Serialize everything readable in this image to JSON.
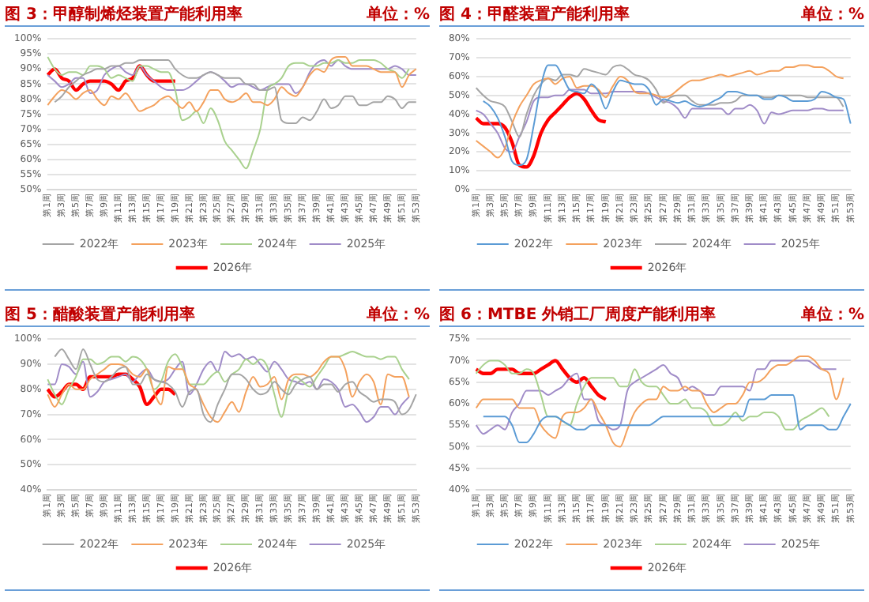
{
  "chart_data": [
    {
      "type": "line",
      "title": "图 3：甲醇制烯烃装置产能利用率",
      "subtitle": "单位：%",
      "categories": [
        "第1周",
        null,
        "第3周",
        null,
        "第5周",
        null,
        "第7周",
        null,
        "第9周",
        null,
        "第11周",
        null,
        "第13周",
        null,
        "第15周",
        null,
        "第17周",
        null,
        "第19周",
        null,
        "第21周",
        null,
        "第23周",
        null,
        "第25周",
        null,
        "第27周",
        null,
        "第29周",
        null,
        "第31周",
        null,
        "第33周",
        null,
        "第35周",
        null,
        "第37周",
        null,
        "第39周",
        null,
        "第41周",
        null,
        "第43周",
        null,
        "第45周",
        null,
        "第47周",
        null,
        "第49周",
        null,
        "第51周",
        null,
        "第53周"
      ],
      "ylim": [
        50,
        100
      ],
      "yticks": [
        {
          "value": 50,
          "label": "50%"
        },
        {
          "value": 55,
          "label": "55%"
        },
        {
          "value": 60,
          "label": "60%"
        },
        {
          "value": 65,
          "label": "65%"
        },
        {
          "value": 70,
          "label": "70%"
        },
        {
          "value": 75,
          "label": "75%"
        },
        {
          "value": 80,
          "label": "80%"
        },
        {
          "value": 85,
          "label": "85%"
        },
        {
          "value": 90,
          "label": "90%"
        },
        {
          "value": 95,
          "label": "95%"
        },
        {
          "value": 100,
          "label": "100%"
        }
      ],
      "grid": "y",
      "legend": "bottom",
      "series": [
        {
          "name": "2022年",
          "color": "#a5a5a5",
          "values": [
            null,
            79,
            81,
            84,
            86,
            88,
            89,
            90,
            90,
            91,
            91,
            92,
            92,
            93,
            93,
            93,
            93,
            93,
            90,
            88,
            87,
            87,
            88,
            89,
            88,
            87,
            87,
            87,
            85,
            85,
            83,
            83,
            84,
            73,
            72,
            72,
            74,
            73,
            76,
            80,
            77,
            78,
            81,
            81,
            78,
            78,
            79,
            79,
            81,
            80,
            77,
            79,
            79
          ]
        },
        {
          "name": "2023年",
          "color": "#f4a15d",
          "values": [
            78,
            81,
            83,
            82,
            80,
            82,
            83,
            80,
            78,
            81,
            80,
            82,
            79,
            76,
            77,
            78,
            80,
            81,
            79,
            77,
            79,
            76,
            79,
            83,
            83,
            80,
            79,
            80,
            82,
            79,
            79,
            78,
            80,
            84,
            82,
            81,
            84,
            88,
            90,
            89,
            93,
            94,
            94,
            91,
            91,
            91,
            90,
            89,
            89,
            89,
            84,
            88,
            90
          ]
        },
        {
          "name": "2024年",
          "color": "#a9d18e",
          "values": [
            94,
            90,
            88,
            89,
            89,
            88,
            91,
            91,
            90,
            87,
            88,
            87,
            86,
            91,
            91,
            90,
            89,
            89,
            83,
            73,
            74,
            76,
            72,
            77,
            73,
            66,
            63,
            60,
            57,
            63,
            70,
            83,
            85,
            87,
            91,
            92,
            92,
            91,
            91,
            92,
            92,
            93,
            92,
            92,
            93,
            93,
            93,
            92,
            90,
            89,
            87,
            90,
            null
          ]
        },
        {
          "name": "2025年",
          "color": "#a08cc8",
          "values": [
            88,
            86,
            84,
            85,
            87,
            87,
            82,
            83,
            88,
            90,
            91,
            89,
            88,
            91,
            88,
            86,
            84,
            83,
            83,
            83,
            84,
            86,
            88,
            89,
            88,
            86,
            84,
            85,
            85,
            84,
            83,
            84,
            85,
            85,
            85,
            82,
            84,
            89,
            92,
            93,
            91,
            93,
            91,
            90,
            90,
            90,
            90,
            90,
            90,
            91,
            90,
            88,
            88
          ]
        },
        {
          "name": "2026年",
          "color": "#ff0000",
          "values": [
            88,
            90,
            87,
            86,
            83,
            85,
            86,
            86,
            86,
            85,
            83,
            86,
            87,
            91,
            88,
            86,
            86,
            86,
            86,
            null,
            null,
            null,
            null,
            null,
            null,
            null,
            null,
            null,
            null,
            null,
            null,
            null,
            null,
            null,
            null,
            null,
            null,
            null,
            null,
            null,
            null,
            null,
            null,
            null,
            null,
            null,
            null,
            null,
            null,
            null,
            null,
            null,
            null
          ]
        }
      ]
    },
    {
      "type": "line",
      "title": "图 4：甲醛装置产能利用率",
      "subtitle": "单位：%",
      "categories": [
        "第1周",
        null,
        "第3周",
        null,
        "第5周",
        null,
        "第7周",
        null,
        "第9周",
        null,
        "第11周",
        null,
        "第13周",
        null,
        "第15周",
        null,
        "第17周",
        null,
        "第19周",
        null,
        "第21周",
        null,
        "第23周",
        null,
        "第25周",
        null,
        "第27周",
        null,
        "第29周",
        null,
        "第31周",
        null,
        "第33周",
        null,
        "第35周",
        null,
        "第37周",
        null,
        "第39周",
        null,
        "第41周",
        null,
        "第43周",
        null,
        "第45周",
        null,
        "第47周",
        null,
        "第49周",
        null,
        "第51周",
        null,
        "第53周"
      ],
      "ylim": [
        0,
        80
      ],
      "yticks": [
        {
          "value": 0,
          "label": "0%"
        },
        {
          "value": 10,
          "label": "10%"
        },
        {
          "value": 20,
          "label": "20%"
        },
        {
          "value": 30,
          "label": "30%"
        },
        {
          "value": 40,
          "label": "40%"
        },
        {
          "value": 50,
          "label": "50%"
        },
        {
          "value": 60,
          "label": "60%"
        },
        {
          "value": 70,
          "label": "70%"
        },
        {
          "value": 80,
          "label": "80%"
        }
      ],
      "grid": "y",
      "legend": "bottom",
      "series": [
        {
          "name": "2022年",
          "color": "#5b9bd5",
          "values": [
            null,
            47,
            44,
            38,
            28,
            15,
            13,
            16,
            34,
            55,
            66,
            66,
            60,
            53,
            52,
            51,
            56,
            52,
            43,
            52,
            58,
            57,
            56,
            56,
            53,
            45,
            48,
            47,
            46,
            47,
            45,
            44,
            45,
            47,
            49,
            52,
            52,
            51,
            50,
            50,
            48,
            48,
            50,
            49,
            47,
            47,
            47,
            48,
            52,
            51,
            49,
            48,
            35
          ]
        },
        {
          "name": "2023年",
          "color": "#f4a15d",
          "values": [
            26,
            23,
            20,
            17,
            22,
            35,
            44,
            50,
            56,
            58,
            59,
            56,
            59,
            60,
            54,
            55,
            55,
            53,
            49,
            55,
            60,
            58,
            52,
            51,
            51,
            50,
            49,
            50,
            53,
            56,
            58,
            58,
            59,
            60,
            61,
            60,
            61,
            62,
            63,
            61,
            62,
            63,
            63,
            65,
            65,
            66,
            66,
            65,
            65,
            63,
            60,
            59,
            null
          ]
        },
        {
          "name": "2024年",
          "color": "#a5a5a5",
          "values": [
            54,
            50,
            47,
            46,
            44,
            36,
            28,
            40,
            50,
            56,
            59,
            58,
            61,
            61,
            60,
            64,
            63,
            62,
            61,
            65,
            66,
            64,
            61,
            60,
            58,
            53,
            46,
            49,
            50,
            50,
            47,
            45,
            45,
            45,
            46,
            46,
            47,
            50,
            50,
            50,
            49,
            49,
            50,
            50,
            50,
            50,
            49,
            49,
            49,
            49,
            49,
            44,
            null
          ]
        },
        {
          "name": "2025年",
          "color": "#a08cc8",
          "values": [
            42,
            40,
            35,
            30,
            22,
            20,
            28,
            36,
            47,
            49,
            49,
            50,
            50,
            53,
            53,
            53,
            51,
            51,
            51,
            52,
            52,
            52,
            52,
            52,
            51,
            49,
            47,
            46,
            43,
            38,
            43,
            43,
            43,
            43,
            43,
            40,
            43,
            43,
            45,
            42,
            35,
            41,
            40,
            41,
            42,
            42,
            42,
            43,
            43,
            42,
            42,
            42,
            null
          ]
        },
        {
          "name": "2026年",
          "color": "#ff0000",
          "values": [
            38,
            35,
            35,
            35,
            33,
            25,
            13,
            12,
            18,
            30,
            37,
            41,
            45,
            49,
            51,
            48,
            42,
            37,
            36,
            null,
            null,
            null,
            null,
            null,
            null,
            null,
            null,
            null,
            null,
            null,
            null,
            null,
            null,
            null,
            null,
            null,
            null,
            null,
            null,
            null,
            null,
            null,
            null,
            null,
            null,
            null,
            null,
            null,
            null,
            null,
            null,
            null,
            null
          ]
        }
      ]
    },
    {
      "type": "line",
      "title": "图 5：醋酸装置产能利用率",
      "subtitle": "单位：%",
      "categories": [
        "第1周",
        null,
        "第3周",
        null,
        "第5周",
        null,
        "第7周",
        null,
        "第9周",
        null,
        "第11周",
        null,
        "第13周",
        null,
        "第15周",
        null,
        "第17周",
        null,
        "第19周",
        null,
        "第21周",
        null,
        "第23周",
        null,
        "第25周",
        null,
        "第27周",
        null,
        "第29周",
        null,
        "第31周",
        null,
        "第33周",
        null,
        "第35周",
        null,
        "第37周",
        null,
        "第39周",
        null,
        "第41周",
        null,
        "第43周",
        null,
        "第45周",
        null,
        "第47周",
        null,
        "第49周",
        null,
        "第51周",
        null,
        "第53周"
      ],
      "ylim": [
        40,
        100
      ],
      "yticks": [
        {
          "value": 40,
          "label": "40%"
        },
        {
          "value": 50,
          "label": "50%"
        },
        {
          "value": 60,
          "label": "60%"
        },
        {
          "value": 70,
          "label": "70%"
        },
        {
          "value": 80,
          "label": "80%"
        },
        {
          "value": 90,
          "label": "90%"
        },
        {
          "value": 100,
          "label": "100%"
        }
      ],
      "grid": "y",
      "legend": "bottom",
      "series": [
        {
          "name": "2022年",
          "color": "#a5a5a5",
          "values": [
            null,
            93,
            96,
            92,
            88,
            96,
            90,
            84,
            83,
            85,
            88,
            89,
            82,
            82,
            86,
            84,
            83,
            82,
            79,
            73,
            79,
            80,
            70,
            67,
            74,
            80,
            86,
            86,
            84,
            80,
            78,
            79,
            83,
            80,
            78,
            82,
            84,
            85,
            80,
            82,
            82,
            79,
            82,
            83,
            79,
            77,
            75,
            76,
            76,
            75,
            70,
            72,
            78
          ]
        },
        {
          "name": "2023年",
          "color": "#f4a15d",
          "values": [
            78,
            73,
            78,
            82,
            80,
            80,
            84,
            86,
            88,
            90,
            90,
            89,
            86,
            85,
            88,
            79,
            74,
            89,
            88,
            88,
            82,
            80,
            74,
            69,
            67,
            71,
            75,
            71,
            79,
            85,
            81,
            82,
            85,
            76,
            84,
            86,
            86,
            85,
            87,
            91,
            93,
            93,
            88,
            77,
            83,
            86,
            83,
            74,
            86,
            85,
            85,
            77,
            null
          ]
        },
        {
          "name": "2024年",
          "color": "#a9d18e",
          "values": [
            84,
            78,
            74,
            80,
            85,
            92,
            92,
            90,
            91,
            93,
            93,
            91,
            93,
            92,
            88,
            80,
            83,
            91,
            94,
            89,
            82,
            82,
            82,
            85,
            87,
            83,
            86,
            88,
            92,
            90,
            92,
            89,
            78,
            69,
            80,
            85,
            83,
            81,
            85,
            89,
            93,
            93,
            94,
            95,
            94,
            93,
            93,
            92,
            93,
            93,
            88,
            84,
            null
          ]
        },
        {
          "name": "2025年",
          "color": "#a08cc8",
          "values": [
            82,
            82,
            90,
            89,
            86,
            91,
            77,
            79,
            83,
            84,
            85,
            86,
            83,
            86,
            88,
            84,
            83,
            84,
            88,
            91,
            78,
            82,
            88,
            91,
            87,
            95,
            93,
            94,
            92,
            93,
            90,
            87,
            91,
            88,
            84,
            83,
            82,
            83,
            80,
            84,
            83,
            80,
            73,
            74,
            71,
            67,
            69,
            73,
            73,
            70,
            74,
            77,
            null
          ]
        },
        {
          "name": "2026年",
          "color": "#ff0000",
          "values": [
            80,
            77,
            79,
            82,
            82,
            80,
            85,
            85,
            85,
            85,
            86,
            86,
            84,
            81,
            74,
            77,
            80,
            80,
            78,
            null,
            null,
            null,
            null,
            null,
            null,
            null,
            null,
            null,
            null,
            null,
            null,
            null,
            null,
            null,
            null,
            null,
            null,
            null,
            null,
            null,
            null,
            null,
            null,
            null,
            null,
            null,
            null,
            null,
            null,
            null,
            null,
            null,
            null
          ]
        }
      ]
    },
    {
      "type": "line",
      "title": "图 6：MTBE 外销工厂周度产能利用率",
      "subtitle": "单位：%",
      "categories": [
        "第1周",
        null,
        "第3周",
        null,
        "第5周",
        null,
        "第7周",
        null,
        "第9周",
        null,
        "第11周",
        null,
        "第13周",
        null,
        "第15周",
        null,
        "第17周",
        null,
        "第19周",
        null,
        "第21周",
        null,
        "第23周",
        null,
        "第25周",
        null,
        "第27周",
        null,
        "第29周",
        null,
        "第31周",
        null,
        "第33周",
        null,
        "第35周",
        null,
        "第37周",
        null,
        "第39周",
        null,
        "第41周",
        null,
        "第43周",
        null,
        "第45周",
        null,
        "第47周",
        null,
        "第49周",
        null,
        "第51周",
        null,
        "第53周"
      ],
      "ylim": [
        40,
        75
      ],
      "yticks": [
        {
          "value": 40,
          "label": "40%"
        },
        {
          "value": 45,
          "label": "45%"
        },
        {
          "value": 50,
          "label": "50%"
        },
        {
          "value": 55,
          "label": "55%"
        },
        {
          "value": 60,
          "label": "60%"
        },
        {
          "value": 65,
          "label": "65%"
        },
        {
          "value": 70,
          "label": "70%"
        },
        {
          "value": 75,
          "label": "75%"
        }
      ],
      "grid": "y",
      "legend": "bottom",
      "series": [
        {
          "name": "2022年",
          "color": "#5b9bd5",
          "values": [
            null,
            57,
            57,
            57,
            57,
            55,
            51,
            51,
            53,
            56,
            57,
            57,
            56,
            55,
            54,
            54,
            55,
            55,
            55,
            55,
            55,
            55,
            55,
            55,
            55,
            56,
            57,
            57,
            57,
            57,
            57,
            57,
            57,
            57,
            57,
            57,
            57,
            57,
            61,
            61,
            61,
            62,
            62,
            62,
            62,
            54,
            55,
            55,
            55,
            54,
            54,
            57,
            60
          ]
        },
        {
          "name": "2023年",
          "color": "#f4a15d",
          "values": [
            59,
            61,
            61,
            61,
            61,
            61,
            59,
            59,
            59,
            55,
            53,
            52,
            57,
            58,
            58,
            59,
            61,
            58,
            55,
            51,
            50,
            54,
            58,
            60,
            61,
            61,
            64,
            63,
            63,
            64,
            63,
            63,
            60,
            58,
            59,
            60,
            60,
            62,
            65,
            65,
            66,
            68,
            69,
            69,
            70,
            71,
            71,
            70,
            68,
            67,
            61,
            66,
            null
          ]
        },
        {
          "name": "2024年",
          "color": "#a9d18e",
          "values": [
            67,
            69,
            70,
            70,
            69,
            67,
            67,
            68,
            67,
            62,
            57,
            57,
            56,
            55,
            60,
            64,
            66,
            66,
            66,
            66,
            64,
            64,
            68,
            65,
            64,
            64,
            62,
            60,
            60,
            61,
            59,
            59,
            58,
            55,
            55,
            56,
            58,
            56,
            57,
            57,
            58,
            58,
            57,
            54,
            54,
            56,
            57,
            58,
            59,
            57,
            null,
            null,
            null
          ]
        },
        {
          "name": "2025年",
          "color": "#a08cc8",
          "values": [
            55,
            53,
            54,
            55,
            54,
            58,
            60,
            63,
            63,
            63,
            62,
            63,
            64,
            66,
            67,
            61,
            61,
            56,
            55,
            54,
            55,
            63,
            65,
            66,
            67,
            68,
            69,
            67,
            66,
            63,
            64,
            63,
            62,
            62,
            64,
            64,
            64,
            64,
            63,
            68,
            68,
            70,
            70,
            70,
            70,
            70,
            70,
            69,
            68,
            68,
            68,
            null,
            null
          ]
        },
        {
          "name": "2026年",
          "color": "#ff0000",
          "values": [
            68,
            67,
            67,
            68,
            68,
            68,
            67,
            67,
            67,
            68,
            69,
            70,
            68,
            66,
            65,
            66,
            64,
            62,
            61,
            null,
            null,
            null,
            null,
            null,
            null,
            null,
            null,
            null,
            null,
            null,
            null,
            null,
            null,
            null,
            null,
            null,
            null,
            null,
            null,
            null,
            null,
            null,
            null,
            null,
            null,
            null,
            null,
            null,
            null,
            null,
            null,
            null,
            null
          ]
        }
      ]
    }
  ]
}
